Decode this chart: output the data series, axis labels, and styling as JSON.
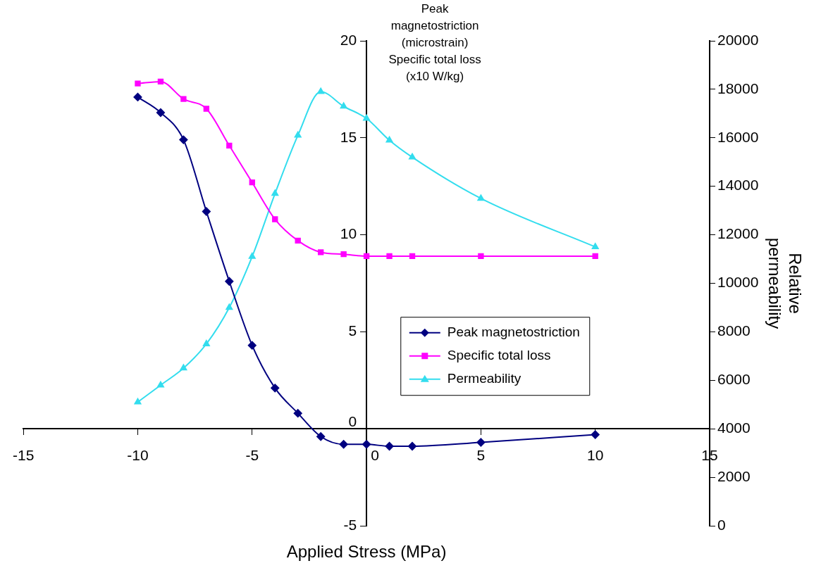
{
  "chart_data": {
    "type": "line",
    "xlabel": "Applied Stress (MPa)",
    "ylabel": "Peak\nmagnetostriction\n(microstrain)\nSpecific total loss\n(x10 W/kg)",
    "y2label": "Relative\npermeability",
    "x": [
      -10,
      -9,
      -8,
      -7,
      -6,
      -5,
      -4,
      -3,
      -2,
      -1,
      0,
      1,
      2,
      5,
      10
    ],
    "xlim": [
      -15,
      15
    ],
    "xticks": [
      -15,
      -10,
      -5,
      0,
      5,
      10,
      15
    ],
    "ylim": [
      -5,
      20
    ],
    "yticks": [
      -5,
      0,
      5,
      10,
      15,
      20
    ],
    "y2lim": [
      0,
      20000
    ],
    "y2ticks": [
      0,
      2000,
      4000,
      6000,
      8000,
      10000,
      12000,
      14000,
      16000,
      18000,
      20000
    ],
    "legend": "center",
    "grid": false,
    "line_style": "solid",
    "series": [
      {
        "name": "Peak magnetostriction",
        "color": "#000080",
        "marker": "diamond",
        "values": [
          17.1,
          16.3,
          14.9,
          11.2,
          7.6,
          4.3,
          2.1,
          0.8,
          -0.4,
          -0.8,
          -0.8,
          -0.9,
          -0.9,
          -0.7,
          -0.3
        ]
      },
      {
        "name": "Specific total loss",
        "color": "#ff00ff",
        "marker": "square",
        "values": [
          17.8,
          17.9,
          17.0,
          16.5,
          14.6,
          12.7,
          10.8,
          9.7,
          9.1,
          9.0,
          8.9,
          8.9,
          8.9,
          8.9,
          8.9
        ]
      },
      {
        "name": "Permeability",
        "color": "#33ddee",
        "marker": "triangle",
        "axis": "y2",
        "values": [
          5100,
          5800,
          6500,
          7500,
          9000,
          11100,
          13700,
          16100,
          17900,
          17300,
          16800,
          15900,
          15200,
          13500,
          11500
        ]
      }
    ]
  }
}
